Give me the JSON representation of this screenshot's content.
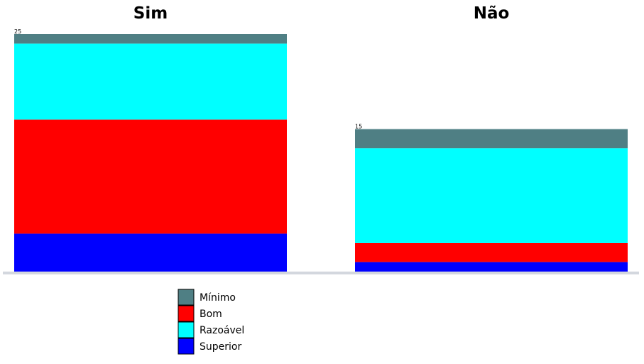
{
  "chart_data": {
    "type": "bar",
    "stacked": true,
    "categories": [
      "Sim",
      "Não"
    ],
    "totals": [
      "25",
      "15"
    ],
    "series": [
      {
        "name": "Superior",
        "color": "#0000ff",
        "values": [
          4,
          1
        ]
      },
      {
        "name": "Bom",
        "color": "#ff0000",
        "values": [
          12,
          2
        ]
      },
      {
        "name": "Razoável",
        "color": "#00ffff",
        "values": [
          8,
          10
        ]
      },
      {
        "name": "Mínimo",
        "color": "#4f7f84",
        "values": [
          1,
          2
        ]
      }
    ],
    "legend_order": [
      "Mínimo",
      "Bom",
      "Razoável",
      "Superior"
    ],
    "ylim": [
      0,
      25
    ],
    "grid": false,
    "legend_position": "bottom-left",
    "axis_color": "#d3d7de"
  }
}
